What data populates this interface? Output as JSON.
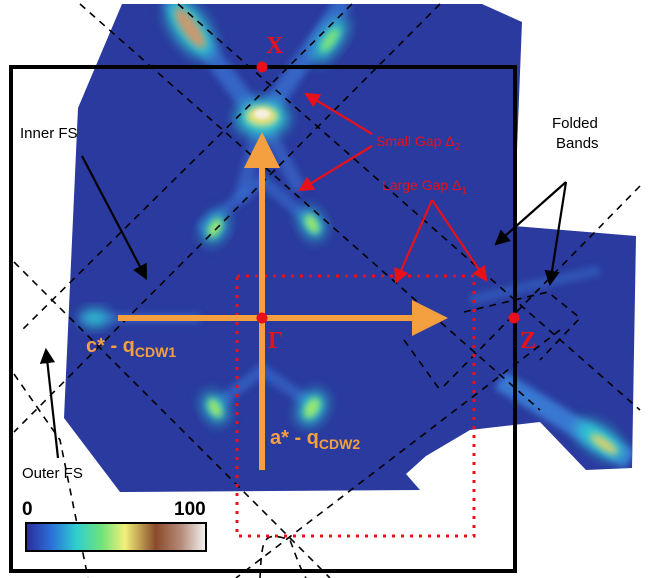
{
  "labels": {
    "x_point": "X",
    "gamma_point": "Γ",
    "z_point": "Z",
    "inner_fs": "Inner FS",
    "outer_fs": "Outer FS",
    "small_gap": "Small Gap Δ",
    "small_gap_sub": "2",
    "large_gap": "Large Gap Δ",
    "large_gap_sub": "1",
    "folded_bands_line1": "Folded",
    "folded_bands_line2": "Bands",
    "c_axis_main": "c* - q",
    "c_axis_sub": "CDW1",
    "a_axis_main": "a* - q",
    "a_axis_sub": "CDW2"
  },
  "colorbar": {
    "min_label": "0",
    "max_label": "100",
    "stops": [
      "#2b2b9a",
      "#2c6fd8",
      "#2ecfd0",
      "#6fe27a",
      "#f2f07a",
      "#8a4a2a",
      "#b58a78",
      "#f4f4f4"
    ]
  },
  "colors": {
    "map_background": "#2a3a9e",
    "hot_spot": "#8ee25a",
    "arrow": "#f5a040",
    "accent_red": "#e8101a",
    "frame": "#000000"
  }
}
